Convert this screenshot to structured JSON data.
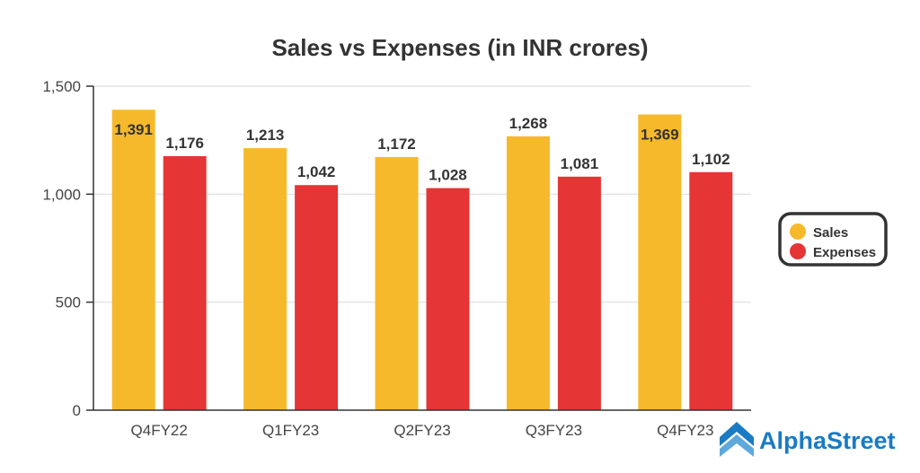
{
  "chart_data": {
    "type": "bar",
    "title": "Sales vs Expenses (in INR crores)",
    "xlabel": "",
    "ylabel": "",
    "categories": [
      "Q4FY22",
      "Q1FY23",
      "Q2FY23",
      "Q3FY23",
      "Q4FY23"
    ],
    "series": [
      {
        "name": "Sales",
        "color": "#f6b92b",
        "values": [
          1391,
          1213,
          1172,
          1268,
          1369
        ]
      },
      {
        "name": "Expenses",
        "color": "#e53535",
        "values": [
          1176,
          1042,
          1028,
          1081,
          1102
        ]
      }
    ],
    "ylim": [
      0,
      1500
    ],
    "yticks": [
      0,
      500,
      1000,
      1500
    ],
    "ytick_labels": [
      "0",
      "500",
      "1,000",
      "1,500"
    ],
    "grid": true,
    "legend_position": "right"
  },
  "branding": {
    "logo_text": "AlphaStreet"
  }
}
